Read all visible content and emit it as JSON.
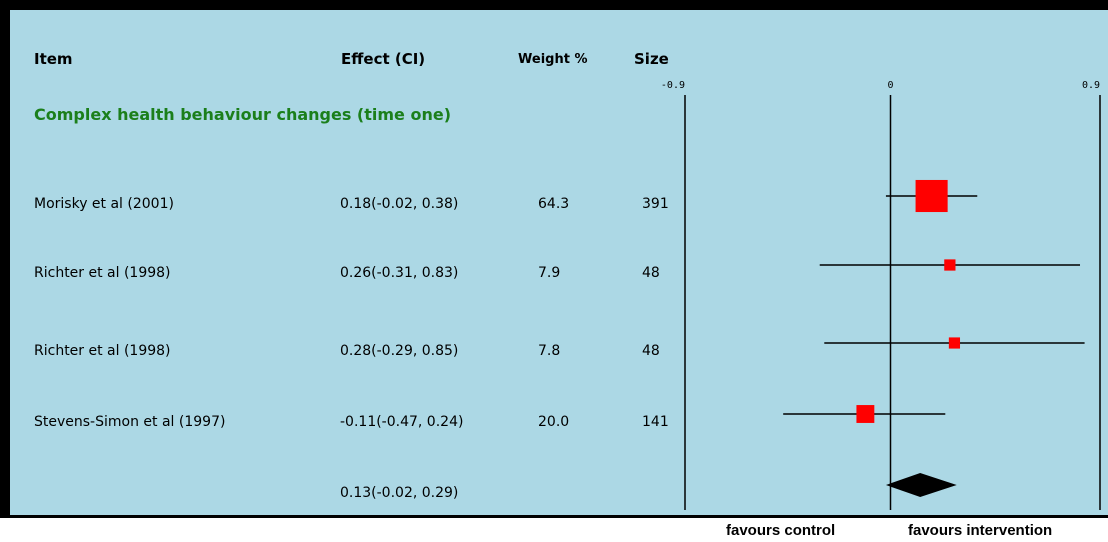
{
  "headers": {
    "item": "Item",
    "effect": "Effect (CI)",
    "weight": "Weight %",
    "size": "Size"
  },
  "group_title": "Complex health behaviour changes (time one)",
  "footer": {
    "left": "favours control",
    "right": "favours intervention"
  },
  "colors": {
    "panel_background": "#acd8e5",
    "study_marker": "#ff0000",
    "group_title": "#1b7f1b",
    "lines": "#000000"
  },
  "chart_data": {
    "type": "forest",
    "x_ticks": [
      "-0.9",
      "0",
      "0.9"
    ],
    "xlim": [
      -0.9,
      0.9
    ],
    "rows": [
      {
        "item": "Morisky et al (2001)",
        "effect_text": "0.18(-0.02, 0.38)",
        "weight": "64.3",
        "size": "391",
        "estimate": 0.18,
        "ci_low": -0.02,
        "ci_high": 0.38,
        "weight_pct": 64.3
      },
      {
        "item": "Richter et al (1998)",
        "effect_text": "0.26(-0.31, 0.83)",
        "weight": "7.9",
        "size": "48",
        "estimate": 0.26,
        "ci_low": -0.31,
        "ci_high": 0.83,
        "weight_pct": 7.9
      },
      {
        "item": "Richter et al (1998)",
        "effect_text": "0.28(-0.29, 0.85)",
        "weight": "7.8",
        "size": "48",
        "estimate": 0.28,
        "ci_low": -0.29,
        "ci_high": 0.85,
        "weight_pct": 7.8
      },
      {
        "item": "Stevens-Simon et al (1997)",
        "effect_text": "-0.11(-0.47, 0.24)",
        "weight": "20.0",
        "size": "141",
        "estimate": -0.11,
        "ci_low": -0.47,
        "ci_high": 0.24,
        "weight_pct": 20.0
      }
    ],
    "pooled": {
      "effect_text": "0.13(-0.02, 0.29)",
      "estimate": 0.13,
      "ci_low": -0.02,
      "ci_high": 0.29
    }
  }
}
